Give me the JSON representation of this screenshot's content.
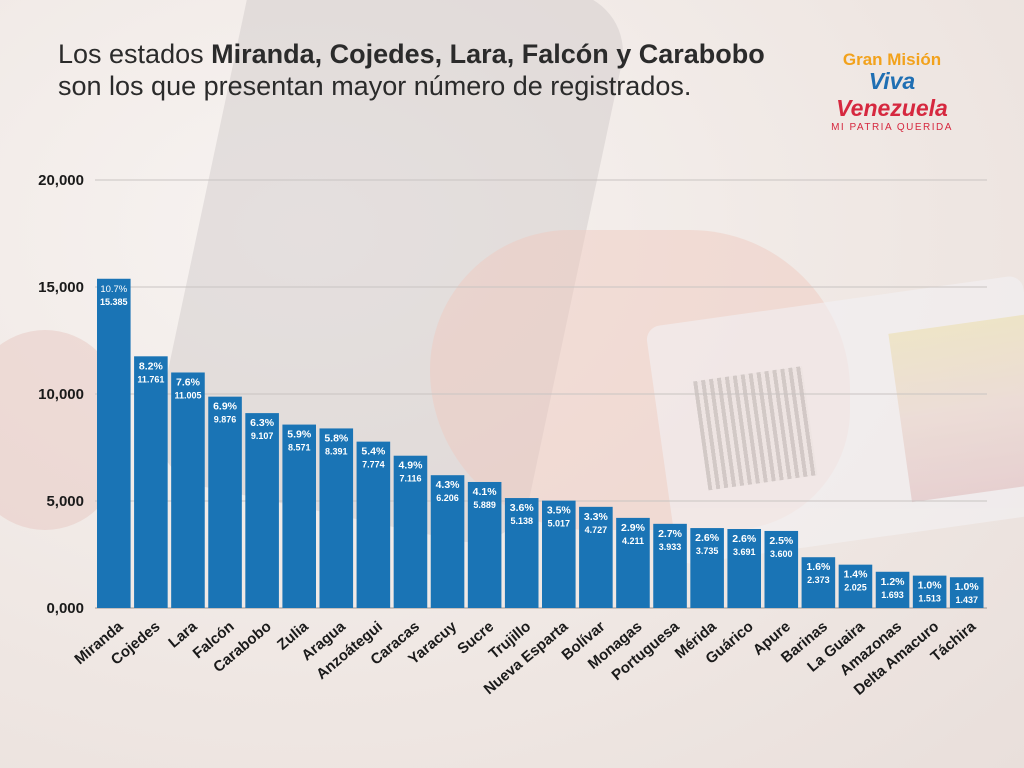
{
  "header": {
    "title_prefix": "Los estados ",
    "title_bold": "Miranda, Cojedes, Lara, Falcón y Carabobo",
    "title_suffix": "son los que presentan mayor número de registrados."
  },
  "logo": {
    "line1": "Gran Misión",
    "line2a": "Viva ",
    "line2b": "Venezuela",
    "line3": "MI PATRIA QUERIDA"
  },
  "colors": {
    "bar": "#1a74b5",
    "grid": "#c9c4c2",
    "text": "#1a1a1a"
  },
  "chart_data": {
    "type": "bar",
    "categories": [
      "Miranda",
      "Cojedes",
      "Lara",
      "Falcón",
      "Carabobo",
      "Zulia",
      "Aragua",
      "Anzoátegui",
      "Caracas",
      "Yaracuy",
      "Sucre",
      "Trujillo",
      "Nueva Esparta",
      "Bolívar",
      "Monagas",
      "Portuguesa",
      "Mérida",
      "Guárico",
      "Apure",
      "Barinas",
      "La Guaira",
      "Amazonas",
      "Delta Amacuro",
      "Táchira"
    ],
    "values": [
      15385,
      11761,
      11005,
      9876,
      9107,
      8571,
      8391,
      7774,
      7116,
      6206,
      5889,
      5138,
      5017,
      4727,
      4211,
      3933,
      3735,
      3691,
      3600,
      2373,
      2025,
      1693,
      1513,
      1437
    ],
    "value_labels": [
      "15.385",
      "11.761",
      "11.005",
      "9.876",
      "9.107",
      "8.571",
      "8.391",
      "7.774",
      "7.116",
      "6.206",
      "5.889",
      "5.138",
      "5.017",
      "4.727",
      "4.211",
      "3.933",
      "3.735",
      "3.691",
      "3.600",
      "2.373",
      "2.025",
      "1.693",
      "1.513",
      "1.437"
    ],
    "percent_labels": [
      "10.7%",
      "8.2%",
      "7.6%",
      "6.9%",
      "6.3%",
      "5.9%",
      "5.8%",
      "5.4%",
      "4.9%",
      "4.3%",
      "4.1%",
      "3.6%",
      "3.5%",
      "3.3%",
      "2.9%",
      "2.7%",
      "2.6%",
      "2.6%",
      "2.5%",
      "1.6%",
      "1.4%",
      "1.2%",
      "1.0%",
      "1.0%"
    ],
    "ytick_labels": [
      "0,000",
      "5,000",
      "10,000",
      "15,000",
      "20,000"
    ],
    "yticks": [
      0,
      5000,
      10000,
      15000,
      20000
    ],
    "ylim": [
      0,
      20000
    ],
    "grid": true
  }
}
